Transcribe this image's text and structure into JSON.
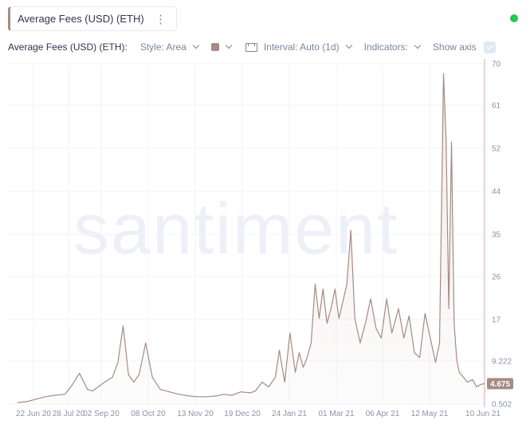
{
  "metric": {
    "name": "Average Fees (USD) (ETH)",
    "menu_icon": "vertical-ellipsis-icon"
  },
  "status": {
    "color": "#26c953"
  },
  "toolbar": {
    "title": "Average Fees (USD) (ETH):",
    "style_label": "Style: Area",
    "color": "#a58b83",
    "interval_label": "Interval: Auto (1d)",
    "indicators_label": "Indicators:",
    "show_axis_label": "Show axis"
  },
  "watermark": "santiment",
  "chart_data": {
    "type": "area",
    "title": "Average Fees (USD) (ETH)",
    "xlabel": "",
    "ylabel": "",
    "ylim": [
      0.502,
      70
    ],
    "y_ticks": [
      "70",
      "61",
      "52",
      "44",
      "35",
      "26",
      "17",
      "9.222",
      "0.502"
    ],
    "x_ticks": [
      "22 Jun 20",
      "28 Jul 20",
      "02 Sep 20",
      "08 Oct 20",
      "13 Nov 20",
      "19 Dec 20",
      "24 Jan 21",
      "01 Mar 21",
      "06 Apr 21",
      "12 May 21",
      "10 Jun 21"
    ],
    "last_value": "4.675",
    "grid": true,
    "series": [
      {
        "color": "#a58b83",
        "x": [
          "2020-06-22",
          "2020-06-29",
          "2020-07-06",
          "2020-07-13",
          "2020-07-20",
          "2020-07-28",
          "2020-08-02",
          "2020-08-08",
          "2020-08-14",
          "2020-08-18",
          "2020-08-22",
          "2020-08-27",
          "2020-09-02",
          "2020-09-06",
          "2020-09-10",
          "2020-09-14",
          "2020-09-18",
          "2020-09-22",
          "2020-09-27",
          "2020-10-02",
          "2020-10-08",
          "2020-10-15",
          "2020-10-22",
          "2020-10-29",
          "2020-11-05",
          "2020-11-13",
          "2020-11-20",
          "2020-11-25",
          "2020-12-01",
          "2020-12-08",
          "2020-12-15",
          "2020-12-19",
          "2020-12-24",
          "2020-12-29",
          "2021-01-03",
          "2021-01-06",
          "2021-01-10",
          "2021-01-14",
          "2021-01-18",
          "2021-01-21",
          "2021-01-24",
          "2021-01-27",
          "2021-01-30",
          "2021-02-02",
          "2021-02-05",
          "2021-02-08",
          "2021-02-11",
          "2021-02-14",
          "2021-02-17",
          "2021-02-20",
          "2021-02-23",
          "2021-02-26",
          "2021-03-01",
          "2021-03-04",
          "2021-03-08",
          "2021-03-12",
          "2021-03-16",
          "2021-03-20",
          "2021-03-24",
          "2021-03-28",
          "2021-04-01",
          "2021-04-06",
          "2021-04-10",
          "2021-04-14",
          "2021-04-18",
          "2021-04-22",
          "2021-04-26",
          "2021-04-30",
          "2021-05-04",
          "2021-05-07",
          "2021-05-10",
          "2021-05-12",
          "2021-05-14",
          "2021-05-16",
          "2021-05-18",
          "2021-05-20",
          "2021-05-22",
          "2021-05-25",
          "2021-05-28",
          "2021-06-01",
          "2021-06-04",
          "2021-06-07",
          "2021-06-10"
        ],
        "y": [
          0.8,
          1.0,
          1.5,
          2.0,
          2.3,
          2.5,
          4.2,
          6.8,
          3.5,
          3.2,
          4.0,
          5.0,
          6.0,
          9.0,
          16.5,
          6.5,
          5.0,
          6.5,
          13.0,
          6.0,
          3.5,
          3.0,
          2.5,
          2.2,
          2.0,
          2.0,
          2.2,
          2.5,
          2.3,
          3.0,
          2.8,
          3.2,
          5.0,
          4.0,
          6.0,
          11.5,
          5.0,
          15.0,
          7.0,
          11.0,
          8.0,
          10.0,
          13.0,
          25.0,
          18.0,
          24.0,
          17.0,
          20.0,
          24.0,
          18.0,
          21.5,
          25.0,
          36.0,
          18.0,
          13.0,
          17.0,
          22.0,
          16.0,
          14.0,
          22.0,
          15.0,
          20.0,
          14.0,
          18.5,
          11.0,
          10.0,
          19.0,
          14.0,
          9.0,
          13.0,
          68.0,
          54.0,
          20.0,
          54.0,
          17.0,
          9.5,
          7.0,
          6.0,
          5.0,
          5.5,
          4.0,
          4.5,
          4.675
        ]
      }
    ]
  }
}
